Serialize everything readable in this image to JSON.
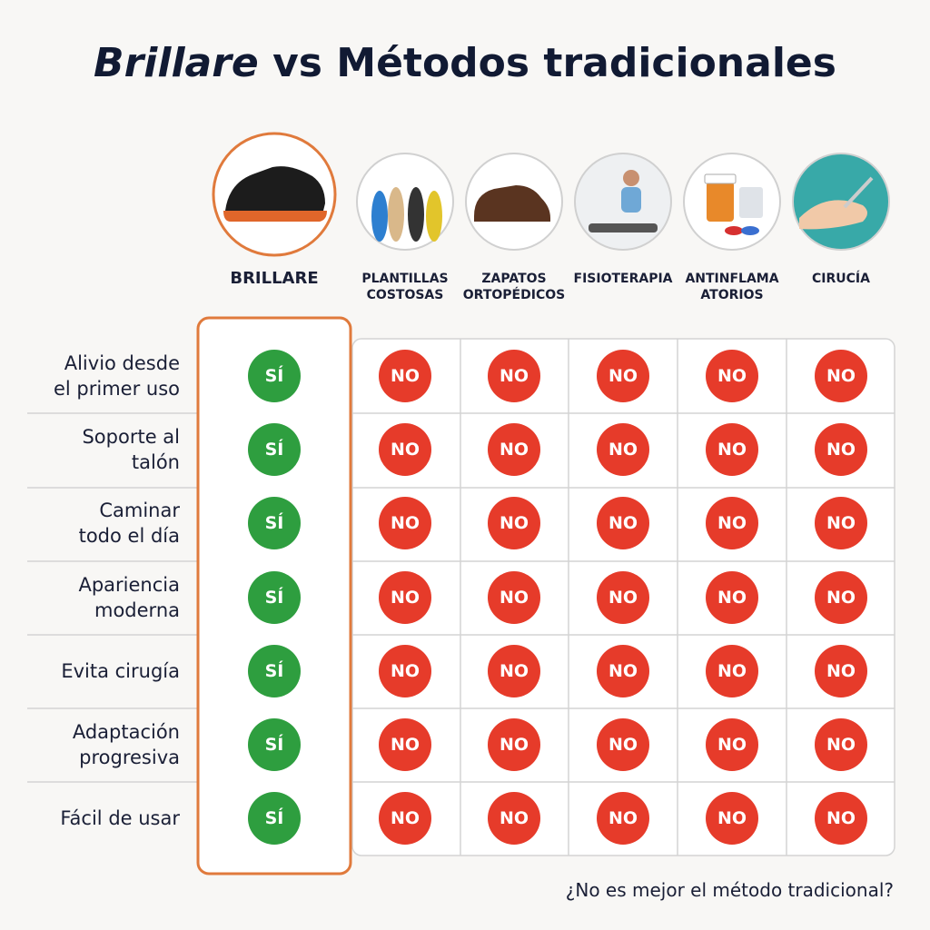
{
  "title": {
    "brand": "Brillare",
    "rest": "vs Métodos tradicionales"
  },
  "columns": [
    "BRILLARE",
    "PLANTILLAS\nCOSTOSAS",
    "ZAPATOS\nORTOPÉDICOS",
    "FISIOTERAPIA",
    "ANTINFLAMA\nATORIOS",
    "CIRUCÍA"
  ],
  "rows": [
    {
      "label": "Alivio desde\nel primer uso",
      "cells": [
        "SÍ",
        "NO",
        "NO",
        "NO",
        "NO",
        "NO"
      ]
    },
    {
      "label": "Soporte al\ntalón",
      "cells": [
        "SÍ",
        "NO",
        "NO",
        "NO",
        "NO",
        "NO"
      ]
    },
    {
      "label": "Caminar\ntodo el día",
      "cells": [
        "SÍ",
        "NO",
        "NO",
        "NO",
        "NO",
        "NO"
      ]
    },
    {
      "label": "Apariencia\nmoderna",
      "cells": [
        "SÍ",
        "NO",
        "NO",
        "NO",
        "NO",
        "NO"
      ]
    },
    {
      "label": "Evita cirugía",
      "cells": [
        "SÍ",
        "NO",
        "NO",
        "NO",
        "NO",
        "NO"
      ]
    },
    {
      "label": "Adaptación\nprogresiva",
      "cells": [
        "SÍ",
        "NO",
        "NO",
        "NO",
        "NO",
        "NO"
      ]
    },
    {
      "label": "Fácil de usar",
      "cells": [
        "SÍ",
        "NO",
        "NO",
        "NO",
        "NO",
        "NO"
      ]
    }
  ],
  "footer": "¿No es mejor el método tradicional?"
}
